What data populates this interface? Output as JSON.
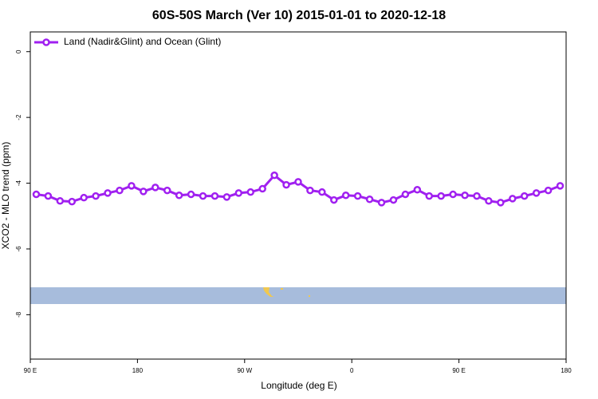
{
  "chart_data": {
    "type": "line",
    "title": "60S-50S March (Ver 10)   2015-01-01 to 2020-12-18",
    "xlabel": "Longitude (deg E)",
    "ylabel": "XCO2 - MLO trend (ppm)",
    "x": [
      95,
      105,
      115,
      125,
      135,
      145,
      155,
      165,
      175,
      185,
      195,
      205,
      215,
      225,
      235,
      245,
      255,
      265,
      275,
      285,
      295,
      305,
      315,
      325,
      335,
      345,
      355,
      365,
      375,
      385,
      395,
      405,
      415,
      425,
      435,
      445,
      455,
      465,
      475,
      485,
      495,
      505,
      515,
      525,
      535
    ],
    "series": [
      {
        "name": "Land (Nadir&Glint) and Ocean (Glint)",
        "color": "#a020f0",
        "values": [
          -4.34,
          -4.39,
          -4.54,
          -4.56,
          -4.44,
          -4.39,
          -4.3,
          -4.22,
          -4.08,
          -4.25,
          -4.13,
          -4.22,
          -4.37,
          -4.34,
          -4.39,
          -4.39,
          -4.42,
          -4.3,
          -4.27,
          -4.17,
          -3.76,
          -4.05,
          -3.96,
          -4.22,
          -4.27,
          -4.51,
          -4.37,
          -4.39,
          -4.49,
          -4.59,
          -4.51,
          -4.34,
          -4.2,
          -4.39,
          -4.39,
          -4.34,
          -4.37,
          -4.39,
          -4.54,
          -4.59,
          -4.47,
          -4.39,
          -4.3,
          -4.22,
          -4.08
        ]
      }
    ],
    "xlim": [
      90,
      540
    ],
    "xticks": [
      {
        "value": 90,
        "label": "90 E"
      },
      180,
      {
        "value": 270,
        "label": "90 W"
      },
      {
        "value": 360,
        "label": "0"
      },
      {
        "value": 450,
        "label": "90 E"
      },
      {
        "value": 540,
        "label": "180"
      }
    ],
    "ylim": [
      -9.35,
      0.6
    ],
    "yticks": [
      0,
      -2,
      -4,
      -6,
      -8
    ],
    "legend": "top-left"
  }
}
